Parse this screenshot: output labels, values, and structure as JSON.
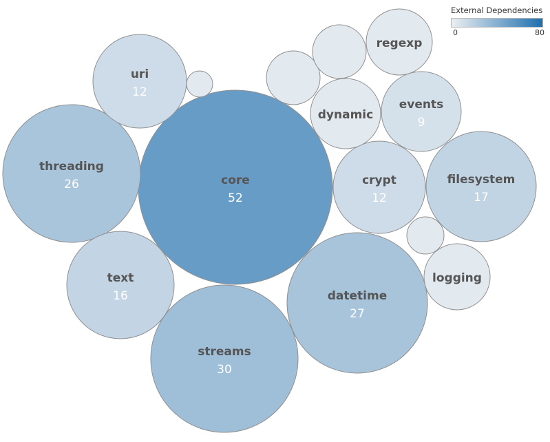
{
  "chart_data": {
    "type": "bubble",
    "legend": {
      "title": "External Dependencies",
      "min": 0,
      "max": 80,
      "min_label": "0",
      "max_label": "80",
      "color_min": "#eceff2",
      "color_max": "#1f6fae",
      "placement": "top-right"
    },
    "bubbles": [
      {
        "name": "core",
        "value": 52
      },
      {
        "name": "streams",
        "value": 30
      },
      {
        "name": "datetime",
        "value": 27
      },
      {
        "name": "threading",
        "value": 26
      },
      {
        "name": "filesystem",
        "value": 17
      },
      {
        "name": "text",
        "value": 16
      },
      {
        "name": "uri",
        "value": 12
      },
      {
        "name": "crypt",
        "value": 12
      },
      {
        "name": "events",
        "value": 9
      },
      {
        "name": "dynamic",
        "value": null
      },
      {
        "name": "regexp",
        "value": null
      },
      {
        "name": "logging",
        "value": null
      },
      {
        "name": "",
        "value": null
      },
      {
        "name": "",
        "value": null
      },
      {
        "name": "",
        "value": null
      },
      {
        "name": "",
        "value": null
      }
    ]
  }
}
